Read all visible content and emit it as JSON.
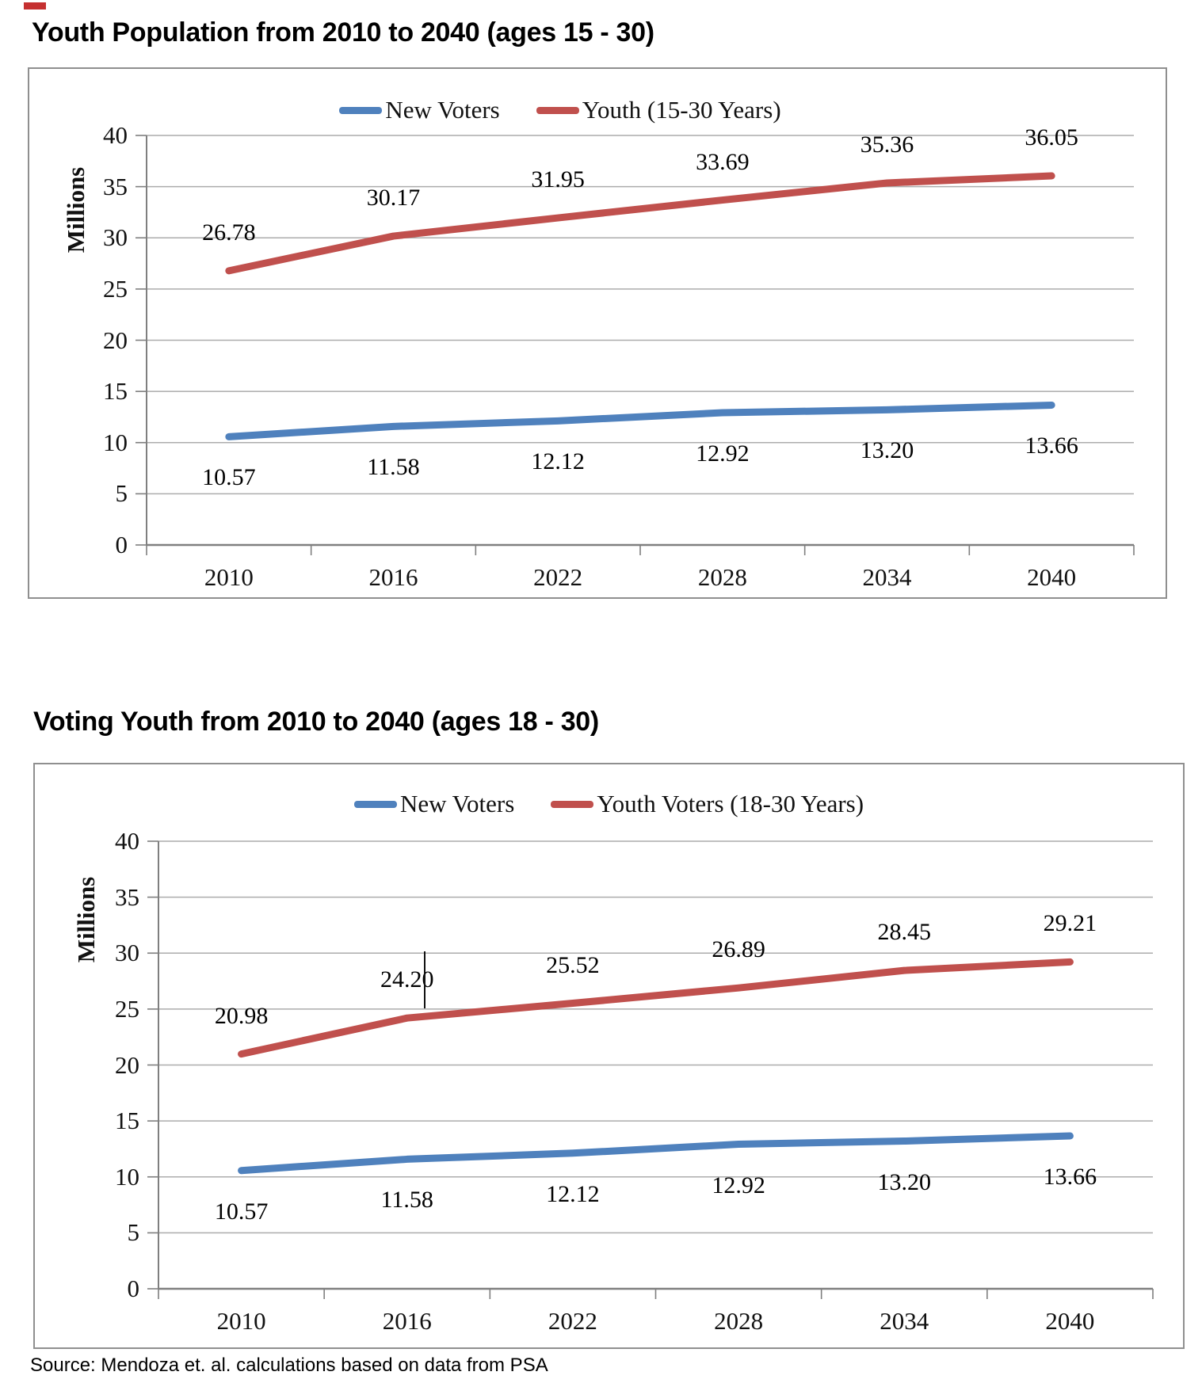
{
  "page": {
    "source_note": "Source: Mendoza et. al. calculations based on data from PSA"
  },
  "colors": {
    "new_voters": "#4F81BD",
    "youth": "#C0504D",
    "gridline": "#ACACAC",
    "axis": "#7F7F7F",
    "box_border": "#8F8F8F",
    "text": "#000000",
    "red_mark": "#C53030"
  },
  "chart_data": [
    {
      "type": "line",
      "title": "Youth Population from 2010 to 2040 (ages 15 - 30)",
      "ylabel": "Millions",
      "x": [
        "2010",
        "2016",
        "2022",
        "2028",
        "2034",
        "2040"
      ],
      "ylim": [
        0,
        40
      ],
      "ytick_step": 5,
      "grid": true,
      "legend_position": "top",
      "series": [
        {
          "name": "New Voters",
          "color_key": "new_voters",
          "values": [
            10.57,
            11.58,
            12.12,
            12.92,
            13.2,
            13.66
          ],
          "label_position": "below"
        },
        {
          "name": "Youth (15-30 Years)",
          "color_key": "youth",
          "values": [
            26.78,
            30.17,
            31.95,
            33.69,
            35.36,
            36.05
          ],
          "label_position": "above"
        }
      ]
    },
    {
      "type": "line",
      "title": "Voting Youth from 2010 to 2040 (ages 18 - 30)",
      "ylabel": "Millions",
      "x": [
        "2010",
        "2016",
        "2022",
        "2028",
        "2034",
        "2040"
      ],
      "ylim": [
        0,
        40
      ],
      "ytick_step": 5,
      "grid": true,
      "legend_position": "top",
      "series": [
        {
          "name": "New Voters",
          "color_key": "new_voters",
          "values": [
            10.57,
            11.58,
            12.12,
            12.92,
            13.2,
            13.66
          ],
          "label_position": "below"
        },
        {
          "name": "Youth Voters (18-30 Years)",
          "color_key": "youth",
          "values": [
            20.98,
            24.2,
            25.52,
            26.89,
            28.45,
            29.21
          ],
          "label_position": "above"
        }
      ],
      "cursor_artifact": {
        "series_index": 1,
        "point_index": 1
      }
    }
  ]
}
